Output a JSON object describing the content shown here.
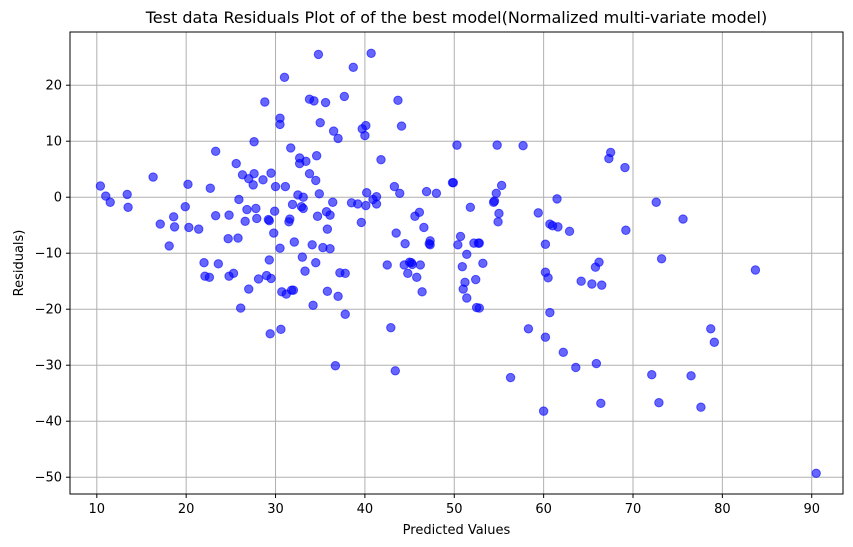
{
  "chart_data": {
    "type": "scatter",
    "title": "Test data Residuals Plot of of the best model(Normalized multi-variate model)",
    "xlabel": "Predicted Values",
    "ylabel": "Residuals)",
    "xlim": [
      7,
      93.5
    ],
    "ylim": [
      -53,
      29.5
    ],
    "xticks": [
      10,
      20,
      30,
      40,
      50,
      60,
      70,
      80,
      90
    ],
    "yticks": [
      -50,
      -40,
      -30,
      -20,
      -10,
      0,
      10,
      20
    ],
    "grid": true,
    "marker_color": "#0000ff",
    "marker_alpha": 0.6,
    "points": [
      [
        10.4,
        2.0
      ],
      [
        11.0,
        0.2
      ],
      [
        11.5,
        -0.9
      ],
      [
        13.4,
        0.5
      ],
      [
        13.5,
        -1.8
      ],
      [
        16.3,
        3.6
      ],
      [
        17.1,
        -4.8
      ],
      [
        18.1,
        -8.7
      ],
      [
        18.6,
        -3.5
      ],
      [
        18.7,
        -5.3
      ],
      [
        19.9,
        -1.7
      ],
      [
        20.2,
        2.3
      ],
      [
        20.3,
        -5.4
      ],
      [
        21.4,
        -5.7
      ],
      [
        22.0,
        -11.7
      ],
      [
        22.1,
        -14.1
      ],
      [
        22.6,
        -14.3
      ],
      [
        22.7,
        1.6
      ],
      [
        23.3,
        8.2
      ],
      [
        23.3,
        -3.3
      ],
      [
        23.6,
        -11.9
      ],
      [
        24.7,
        -7.4
      ],
      [
        24.8,
        -3.2
      ],
      [
        24.8,
        -14.1
      ],
      [
        25.3,
        -13.6
      ],
      [
        25.6,
        6.0
      ],
      [
        25.9,
        -0.4
      ],
      [
        25.8,
        -7.3
      ],
      [
        26.1,
        -19.8
      ],
      [
        26.3,
        4.0
      ],
      [
        26.6,
        -4.3
      ],
      [
        26.8,
        -2.2
      ],
      [
        27.0,
        3.3
      ],
      [
        27.0,
        -16.4
      ],
      [
        27.5,
        2.2
      ],
      [
        27.6,
        4.2
      ],
      [
        27.8,
        -2.0
      ],
      [
        27.6,
        9.9
      ],
      [
        27.9,
        -3.8
      ],
      [
        28.1,
        -14.6
      ],
      [
        28.6,
        3.1
      ],
      [
        28.8,
        17.0
      ],
      [
        29.0,
        -14.0
      ],
      [
        29.2,
        -4.0
      ],
      [
        29.3,
        -4.2
      ],
      [
        29.3,
        -11.2
      ],
      [
        29.5,
        -14.5
      ],
      [
        29.5,
        4.3
      ],
      [
        29.4,
        -24.4
      ],
      [
        29.8,
        -6.4
      ],
      [
        30.0,
        1.9
      ],
      [
        29.9,
        -2.5
      ],
      [
        30.5,
        14.1
      ],
      [
        30.5,
        13.0
      ],
      [
        30.5,
        -9.1
      ],
      [
        30.6,
        -23.6
      ],
      [
        30.7,
        -16.9
      ],
      [
        31.0,
        21.4
      ],
      [
        31.1,
        1.9
      ],
      [
        31.2,
        -17.3
      ],
      [
        31.5,
        -4.4
      ],
      [
        31.6,
        -3.9
      ],
      [
        31.7,
        8.8
      ],
      [
        31.8,
        -16.6
      ],
      [
        31.9,
        -1.3
      ],
      [
        32.0,
        -16.6
      ],
      [
        32.1,
        -8.0
      ],
      [
        32.5,
        0.4
      ],
      [
        32.7,
        6.0
      ],
      [
        32.7,
        7.0
      ],
      [
        32.9,
        -1.7
      ],
      [
        33.0,
        -10.7
      ],
      [
        33.1,
        -2.0
      ],
      [
        33.1,
        0.0
      ],
      [
        33.3,
        -13.2
      ],
      [
        33.4,
        6.4
      ],
      [
        33.8,
        17.5
      ],
      [
        33.8,
        4.2
      ],
      [
        34.1,
        -8.5
      ],
      [
        34.2,
        -19.3
      ],
      [
        34.3,
        17.2
      ],
      [
        34.5,
        -11.7
      ],
      [
        34.5,
        3.0
      ],
      [
        34.6,
        7.4
      ],
      [
        34.7,
        -3.4
      ],
      [
        34.8,
        25.5
      ],
      [
        34.9,
        0.6
      ],
      [
        35.0,
        13.3
      ],
      [
        35.3,
        -9.0
      ],
      [
        35.6,
        16.9
      ],
      [
        35.7,
        -2.6
      ],
      [
        35.8,
        -5.7
      ],
      [
        35.8,
        -16.8
      ],
      [
        36.1,
        -9.2
      ],
      [
        36.1,
        -3.2
      ],
      [
        36.4,
        -0.9
      ],
      [
        36.5,
        11.8
      ],
      [
        36.7,
        -30.1
      ],
      [
        37.0,
        10.5
      ],
      [
        37.0,
        -17.7
      ],
      [
        37.2,
        -13.5
      ],
      [
        37.7,
        18.0
      ],
      [
        37.8,
        -20.9
      ],
      [
        37.8,
        -13.6
      ],
      [
        38.5,
        -1.0
      ],
      [
        38.7,
        23.2
      ],
      [
        39.2,
        -1.2
      ],
      [
        39.6,
        -4.5
      ],
      [
        39.7,
        12.2
      ],
      [
        40.1,
        -1.5
      ],
      [
        40.0,
        11.0
      ],
      [
        40.1,
        12.8
      ],
      [
        40.2,
        0.8
      ],
      [
        40.7,
        25.7
      ],
      [
        40.9,
        -0.4
      ],
      [
        41.3,
        0.1
      ],
      [
        41.3,
        -1.2
      ],
      [
        41.8,
        6.7
      ],
      [
        42.5,
        -12.1
      ],
      [
        42.9,
        -23.3
      ],
      [
        43.4,
        -31.0
      ],
      [
        43.3,
        1.9
      ],
      [
        43.5,
        -6.4
      ],
      [
        43.7,
        17.3
      ],
      [
        43.9,
        0.7
      ],
      [
        44.1,
        12.7
      ],
      [
        44.5,
        -8.3
      ],
      [
        44.4,
        -12.1
      ],
      [
        44.8,
        -13.6
      ],
      [
        45.0,
        -11.6
      ],
      [
        45.3,
        -12.0
      ],
      [
        45.2,
        -11.7
      ],
      [
        45.6,
        -3.4
      ],
      [
        45.8,
        -14.3
      ],
      [
        46.1,
        -2.7
      ],
      [
        46.2,
        -12.1
      ],
      [
        46.4,
        -16.9
      ],
      [
        46.6,
        -5.4
      ],
      [
        46.9,
        1.0
      ],
      [
        47.2,
        -8.3
      ],
      [
        47.3,
        -8.5
      ],
      [
        47.3,
        -7.8
      ],
      [
        48.0,
        0.7
      ],
      [
        49.8,
        2.6
      ],
      [
        49.9,
        2.6
      ],
      [
        50.3,
        9.3
      ],
      [
        50.4,
        -8.5
      ],
      [
        50.7,
        -7.0
      ],
      [
        50.9,
        -12.4
      ],
      [
        51.0,
        -16.4
      ],
      [
        51.2,
        -15.2
      ],
      [
        51.4,
        -18.0
      ],
      [
        51.4,
        -10.2
      ],
      [
        51.8,
        -1.8
      ],
      [
        52.2,
        -8.2
      ],
      [
        52.4,
        -14.7
      ],
      [
        52.5,
        -19.7
      ],
      [
        52.7,
        -8.2
      ],
      [
        52.8,
        -8.2
      ],
      [
        52.8,
        -19.8
      ],
      [
        53.2,
        -11.8
      ],
      [
        54.4,
        -0.9
      ],
      [
        54.5,
        -0.7
      ],
      [
        54.7,
        0.7
      ],
      [
        54.8,
        9.3
      ],
      [
        54.9,
        -4.4
      ],
      [
        55.0,
        -2.9
      ],
      [
        55.3,
        2.1
      ],
      [
        56.3,
        -32.2
      ],
      [
        57.7,
        9.2
      ],
      [
        58.3,
        -23.5
      ],
      [
        59.4,
        -2.8
      ],
      [
        60.0,
        -38.2
      ],
      [
        60.2,
        -8.4
      ],
      [
        60.2,
        -25.0
      ],
      [
        60.2,
        -13.4
      ],
      [
        60.5,
        -14.4
      ],
      [
        60.7,
        -20.6
      ],
      [
        60.7,
        -4.8
      ],
      [
        61.0,
        -5.1
      ],
      [
        61.5,
        -0.3
      ],
      [
        61.6,
        -5.3
      ],
      [
        62.2,
        -27.7
      ],
      [
        62.9,
        -6.1
      ],
      [
        63.6,
        -30.4
      ],
      [
        64.2,
        -15.0
      ],
      [
        65.4,
        -15.5
      ],
      [
        65.8,
        -12.5
      ],
      [
        65.9,
        -29.7
      ],
      [
        66.2,
        -11.6
      ],
      [
        66.4,
        -36.8
      ],
      [
        66.5,
        -15.7
      ],
      [
        67.3,
        6.9
      ],
      [
        67.5,
        8.0
      ],
      [
        69.1,
        5.3
      ],
      [
        69.2,
        -5.9
      ],
      [
        72.1,
        -31.7
      ],
      [
        72.6,
        -0.9
      ],
      [
        72.9,
        -36.7
      ],
      [
        73.2,
        -11.0
      ],
      [
        75.6,
        -3.9
      ],
      [
        76.5,
        -31.9
      ],
      [
        77.6,
        -37.5
      ],
      [
        78.7,
        -23.5
      ],
      [
        79.1,
        -25.9
      ],
      [
        83.7,
        -13.0
      ],
      [
        90.5,
        -49.3
      ]
    ]
  }
}
